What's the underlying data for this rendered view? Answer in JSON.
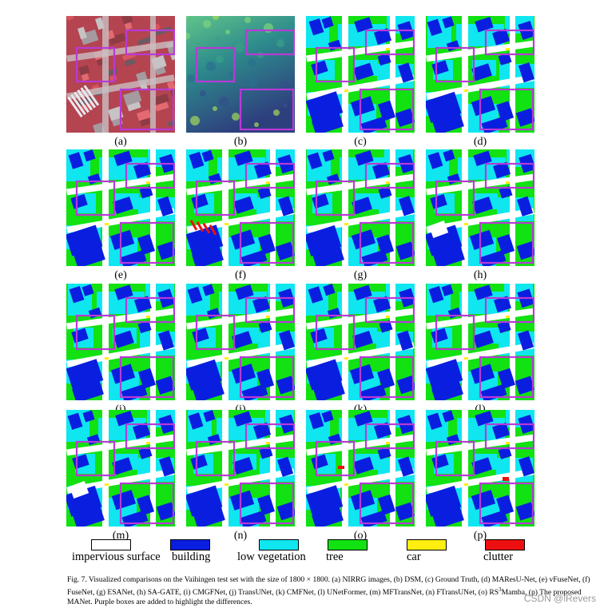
{
  "figure": {
    "panels": [
      {
        "label": "(a)",
        "kind": "nirrg"
      },
      {
        "label": "(b)",
        "kind": "dsm"
      },
      {
        "label": "(c)",
        "kind": "seg"
      },
      {
        "label": "(d)",
        "kind": "seg"
      },
      {
        "label": "(e)",
        "kind": "seg"
      },
      {
        "label": "(f)",
        "kind": "seg"
      },
      {
        "label": "(g)",
        "kind": "seg"
      },
      {
        "label": "(h)",
        "kind": "seg"
      },
      {
        "label": "(i)",
        "kind": "seg"
      },
      {
        "label": "(j)",
        "kind": "seg"
      },
      {
        "label": "(k)",
        "kind": "seg"
      },
      {
        "label": "(l)",
        "kind": "seg"
      },
      {
        "label": "(m)",
        "kind": "seg"
      },
      {
        "label": "(n)",
        "kind": "seg"
      },
      {
        "label": "(o)",
        "kind": "seg"
      },
      {
        "label": "(p)",
        "kind": "seg"
      }
    ],
    "legend": [
      {
        "label": "impervious surface",
        "color": "#ffffff"
      },
      {
        "label": "building",
        "color": "#0a1ee0"
      },
      {
        "label": "low vegetation",
        "color": "#10e6f0"
      },
      {
        "label": "tree",
        "color": "#12e112"
      },
      {
        "label": "car",
        "color": "#ffee10"
      },
      {
        "label": "clutter",
        "color": "#ee1010"
      }
    ],
    "highlight_color": "#b83ad6",
    "caption": {
      "part1": "Fig. 7.  Visualized comparisons on the Vaihingen test set with the size of 1800 × 1800. (a) NIRRG images, (b) DSM, (c) Ground Truth, (d) MAResU-Net, (e) vFuseNet, (f) FuseNet, (g) ESANet, (h) SA-GATE, (i) CMGFNet, (j) TransUNet, (k) CMFNet, (l) UNetFormer, (m) MFTransNet, (n) FTransUNet, (o)",
      "part2": "RS",
      "superscript": "3",
      "part3": "Mamba, (p) The proposed MANet. Purple boxes are added to highlight the differences."
    },
    "watermark": "CSDN @lRevers"
  }
}
